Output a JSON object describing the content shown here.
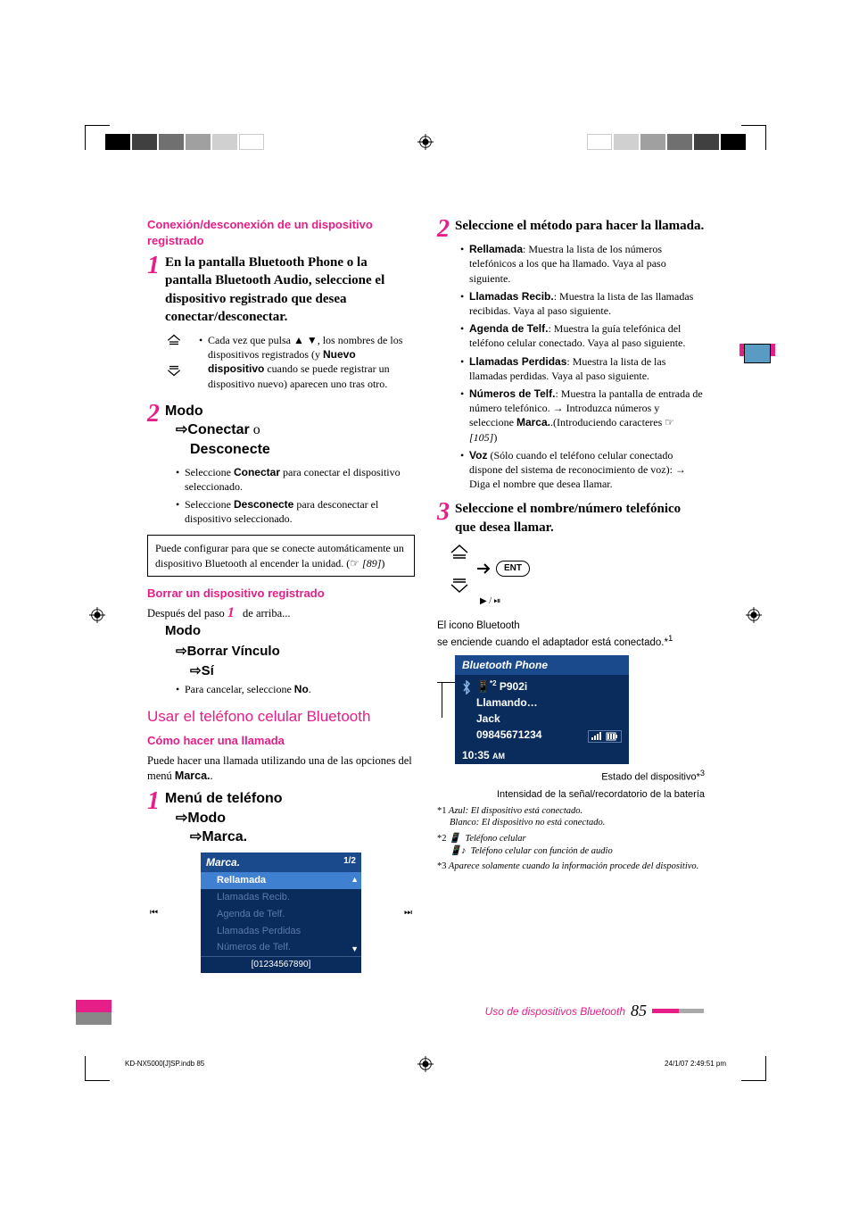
{
  "left_col": {
    "h1": "Conexión/desconexión de un dispositivo registrado",
    "step1_num": "1",
    "step1_text": "En la pantalla Bluetooth Phone o la pantalla Bluetooth Audio, seleccione el dispositivo registrado que desea conectar/desconectar.",
    "step1_bullet": "Cada vez que pulsa ▲ ▼, los nombres de los dispositivos registrados (y ",
    "step1_bullet_bold": "Nuevo dispositivo",
    "step1_bullet_cont": " cuando se puede registrar un dispositivo nuevo) aparecen uno tras otro.",
    "step2_num": "2",
    "step2_modo": "Modo",
    "step2_conectar": "Conectar",
    "step2_o": " o ",
    "step2_desconecte": "Desconecte",
    "step2_b1_pre": "Seleccione ",
    "step2_b1_bold": "Conectar",
    "step2_b1_post": " para conectar el dispositivo seleccionado.",
    "step2_b2_pre": "Seleccione ",
    "step2_b2_bold": "Desconecte",
    "step2_b2_post": " para desconectar el dispositivo seleccionado.",
    "note": "Puede configurar para que se conecte automáticamente un dispositivo Bluetooth al encender la unidad. (☞ ",
    "note_ref": "[89]",
    "note_end": ")",
    "h2": "Borrar un dispositivo registrado",
    "after_step": "Después del paso ",
    "after_step_num": "1",
    "after_step_end": " de arriba...",
    "modo2": "Modo",
    "borrar": "Borrar Vínculo",
    "si": "Sí",
    "cancel_pre": "Para cancelar, seleccione ",
    "cancel_bold": "No",
    "cancel_post": ".",
    "h3": "Usar el teléfono celular Bluetooth",
    "h4": "Cómo hacer una llamada",
    "call_intro_pre": "Puede hacer una llamada utilizando una de las opciones del menú ",
    "call_intro_bold": "Marca.",
    "call_intro_post": ".",
    "menu_step_num": "1",
    "menu_telefono": "Menú de teléfono",
    "menu_modo": "Modo",
    "menu_marca": "Marca.",
    "phone_title": "Marca.",
    "phone_page": "1/2",
    "phone_items": [
      "Rellamada",
      "Llamadas Recib.",
      "Agenda de Telf.",
      "Llamadas Perdidas",
      "Números de Telf."
    ],
    "phone_bottom": "[01234567890]"
  },
  "right_col": {
    "step2_num": "2",
    "step2_text": "Seleccione el método para hacer la llamada.",
    "methods": [
      {
        "bold": "Rellamada",
        "text": ": Muestra la lista de los números telefónicos a los que ha llamado. Vaya al paso siguiente."
      },
      {
        "bold": "Llamadas Recib.",
        "text": ": Muestra la lista de las llamadas recibidas. Vaya al paso siguiente."
      },
      {
        "bold": "Agenda de Telf.",
        "text": ": Muestra la guía telefónica del teléfono celular conectado. Vaya al paso siguiente."
      },
      {
        "bold": "Llamadas Perdidas",
        "text": ": Muestra la lista de las llamadas perdidas. Vaya al paso siguiente."
      },
      {
        "bold": "Números de Telf.",
        "text": ": Muestra la pantalla de entrada de número telefónico. → Introduzca números y seleccione ",
        "bold2": "Marca.",
        "text2": ".(Introduciendo caracteres ☞ ",
        "ref": "[105]",
        "text3": ")"
      },
      {
        "bold": "Voz",
        "text": " (Sólo cuando el teléfono celular conectado dispone del sistema de reconocimiento de voz): → Diga el nombre que desea llamar."
      }
    ],
    "step3_num": "3",
    "step3_text": "Seleccione el nombre/número telefónico que desea llamar.",
    "ent_label": "ENT",
    "bt_caption1": "El icono Bluetooth",
    "bt_caption2": "se enciende cuando el adaptador está conectado.*",
    "bt_caption2_sup": "1",
    "dev_title": "Bluetooth Phone",
    "dev_model_sup": "*2",
    "dev_model": " P902i",
    "dev_status": "Llamando…",
    "dev_name": "Jack",
    "dev_number": "09845671234",
    "dev_time": "10:35 ",
    "dev_time_ampm": "AM",
    "cap1": "Estado del dispositivo*",
    "cap1_sup": "3",
    "cap2": "Intensidad de la señal/recordatorio de la batería",
    "fn1_label": "*1",
    "fn1": " Azul: El dispositivo está conectado.",
    "fn1b": "Blanco: El dispositivo no está conectado.",
    "fn2_label": "*2",
    "fn2": "Teléfono celular",
    "fn2b": "Teléfono celular con función de audio",
    "fn3_label": "*3",
    "fn3": " Aparece solamente cuando la información procede del dispositivo.",
    "footer_text": "Uso de dispositivos Bluetooth",
    "footer_page": "85"
  },
  "print": {
    "left": "KD-NX5000[J]SP.indb   85",
    "right": "24/1/07   2:49:51 pm"
  }
}
